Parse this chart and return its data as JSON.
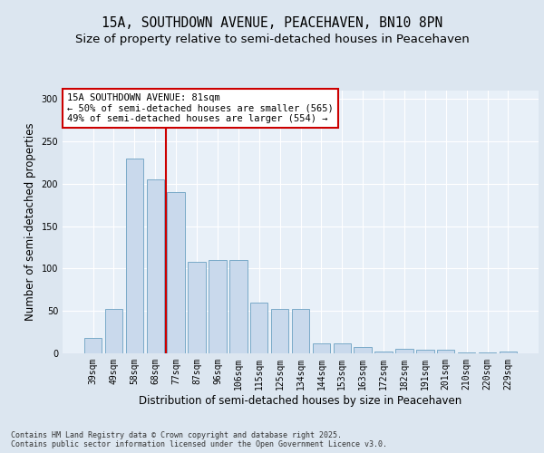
{
  "title_line1": "15A, SOUTHDOWN AVENUE, PEACEHAVEN, BN10 8PN",
  "title_line2": "Size of property relative to semi-detached houses in Peacehaven",
  "xlabel": "Distribution of semi-detached houses by size in Peacehaven",
  "ylabel": "Number of semi-detached properties",
  "categories": [
    "39sqm",
    "49sqm",
    "58sqm",
    "68sqm",
    "77sqm",
    "87sqm",
    "96sqm",
    "106sqm",
    "115sqm",
    "125sqm",
    "134sqm",
    "144sqm",
    "153sqm",
    "163sqm",
    "172sqm",
    "182sqm",
    "191sqm",
    "201sqm",
    "210sqm",
    "220sqm",
    "229sqm"
  ],
  "values": [
    18,
    52,
    230,
    205,
    190,
    108,
    110,
    110,
    60,
    52,
    52,
    12,
    12,
    8,
    2,
    5,
    4,
    4,
    1,
    1,
    2
  ],
  "bar_color": "#c9d9ec",
  "bar_edge_color": "#7aaac8",
  "annotation_text": "15A SOUTHDOWN AVENUE: 81sqm\n← 50% of semi-detached houses are smaller (565)\n49% of semi-detached houses are larger (554) →",
  "annotation_box_color": "#ffffff",
  "annotation_box_edge": "#cc0000",
  "vline_color": "#cc0000",
  "ylim": [
    0,
    310
  ],
  "yticks": [
    0,
    50,
    100,
    150,
    200,
    250,
    300
  ],
  "background_color": "#dce6f0",
  "plot_bg_color": "#e8f0f8",
  "footer_text": "Contains HM Land Registry data © Crown copyright and database right 2025.\nContains public sector information licensed under the Open Government Licence v3.0.",
  "title_fontsize": 10.5,
  "subtitle_fontsize": 9.5,
  "tick_fontsize": 7,
  "label_fontsize": 8.5,
  "footer_fontsize": 6.0
}
